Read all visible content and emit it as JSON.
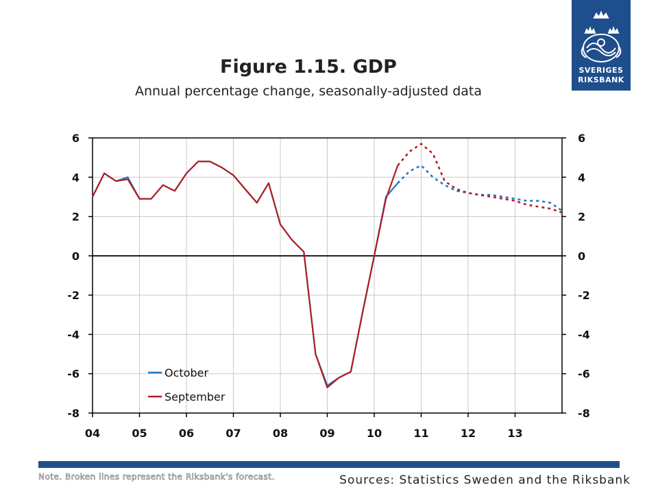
{
  "logo": {
    "line1": "SVERIGES",
    "line2": "RIKSBANK"
  },
  "header": {
    "title": "Figure 1.15. GDP",
    "subtitle": "Annual percentage change, seasonally-adjusted data"
  },
  "footer": {
    "note": "Note. Broken lines represent the Riksbank's forecast.",
    "sources": "Sources: Statistics Sweden and the Riksbank"
  },
  "colors": {
    "brand": "#1f4e8c",
    "october": "#1f78c8",
    "september": "#b01e23"
  },
  "chart_data": {
    "type": "line",
    "title": "",
    "xlabel": "",
    "ylabel": "",
    "x_ticks": [
      "04",
      "05",
      "06",
      "07",
      "08",
      "09",
      "10",
      "11",
      "12",
      "13"
    ],
    "xlim": [
      2004.0,
      2014.0
    ],
    "ylim": [
      -8,
      6
    ],
    "y_ticks": [
      6,
      4,
      2,
      0,
      -2,
      -4,
      -6,
      -8
    ],
    "grid": true,
    "legend": "bottom-left",
    "forecast_start": 2010.5,
    "series": [
      {
        "name": "October",
        "color": "#1f78c8",
        "points": [
          [
            2004.0,
            3.0
          ],
          [
            2004.25,
            4.2
          ],
          [
            2004.5,
            3.8
          ],
          [
            2004.75,
            4.0
          ],
          [
            2005.0,
            2.9
          ],
          [
            2005.25,
            2.9
          ],
          [
            2005.5,
            3.6
          ],
          [
            2005.75,
            3.3
          ],
          [
            2006.0,
            4.2
          ],
          [
            2006.25,
            4.8
          ],
          [
            2006.5,
            4.8
          ],
          [
            2006.75,
            4.5
          ],
          [
            2007.0,
            4.1
          ],
          [
            2007.25,
            3.4
          ],
          [
            2007.5,
            2.7
          ],
          [
            2007.75,
            3.7
          ],
          [
            2008.0,
            1.6
          ],
          [
            2008.25,
            0.8
          ],
          [
            2008.5,
            0.2
          ],
          [
            2008.75,
            -5.0
          ],
          [
            2009.0,
            -6.6
          ],
          [
            2009.25,
            -6.2
          ],
          [
            2009.5,
            -5.9
          ],
          [
            2009.75,
            -2.9
          ],
          [
            2010.0,
            0.0
          ],
          [
            2010.25,
            3.0
          ],
          [
            2010.5,
            3.7
          ],
          [
            2010.75,
            4.3
          ],
          [
            2011.0,
            4.6
          ],
          [
            2011.25,
            4.0
          ],
          [
            2011.5,
            3.6
          ],
          [
            2011.75,
            3.3
          ],
          [
            2012.0,
            3.2
          ],
          [
            2012.25,
            3.1
          ],
          [
            2012.5,
            3.1
          ],
          [
            2012.75,
            3.0
          ],
          [
            2013.0,
            2.9
          ],
          [
            2013.25,
            2.8
          ],
          [
            2013.5,
            2.8
          ],
          [
            2013.75,
            2.7
          ],
          [
            2014.0,
            2.3
          ]
        ]
      },
      {
        "name": "September",
        "color": "#b01e23",
        "points": [
          [
            2004.0,
            3.0
          ],
          [
            2004.25,
            4.2
          ],
          [
            2004.5,
            3.8
          ],
          [
            2004.75,
            3.9
          ],
          [
            2005.0,
            2.9
          ],
          [
            2005.25,
            2.9
          ],
          [
            2005.5,
            3.6
          ],
          [
            2005.75,
            3.3
          ],
          [
            2006.0,
            4.2
          ],
          [
            2006.25,
            4.8
          ],
          [
            2006.5,
            4.8
          ],
          [
            2006.75,
            4.5
          ],
          [
            2007.0,
            4.1
          ],
          [
            2007.25,
            3.4
          ],
          [
            2007.5,
            2.7
          ],
          [
            2007.75,
            3.7
          ],
          [
            2008.0,
            1.6
          ],
          [
            2008.25,
            0.8
          ],
          [
            2008.5,
            0.2
          ],
          [
            2008.75,
            -5.0
          ],
          [
            2009.0,
            -6.7
          ],
          [
            2009.25,
            -6.2
          ],
          [
            2009.5,
            -5.9
          ],
          [
            2009.75,
            -2.9
          ],
          [
            2010.0,
            0.0
          ],
          [
            2010.25,
            2.9
          ],
          [
            2010.5,
            4.6
          ],
          [
            2010.75,
            5.3
          ],
          [
            2011.0,
            5.7
          ],
          [
            2011.25,
            5.2
          ],
          [
            2011.5,
            3.8
          ],
          [
            2011.75,
            3.4
          ],
          [
            2012.0,
            3.2
          ],
          [
            2012.25,
            3.1
          ],
          [
            2012.5,
            3.0
          ],
          [
            2012.75,
            2.9
          ],
          [
            2013.0,
            2.8
          ],
          [
            2013.25,
            2.6
          ],
          [
            2013.5,
            2.5
          ],
          [
            2013.75,
            2.4
          ],
          [
            2014.0,
            2.2
          ]
        ]
      }
    ]
  }
}
